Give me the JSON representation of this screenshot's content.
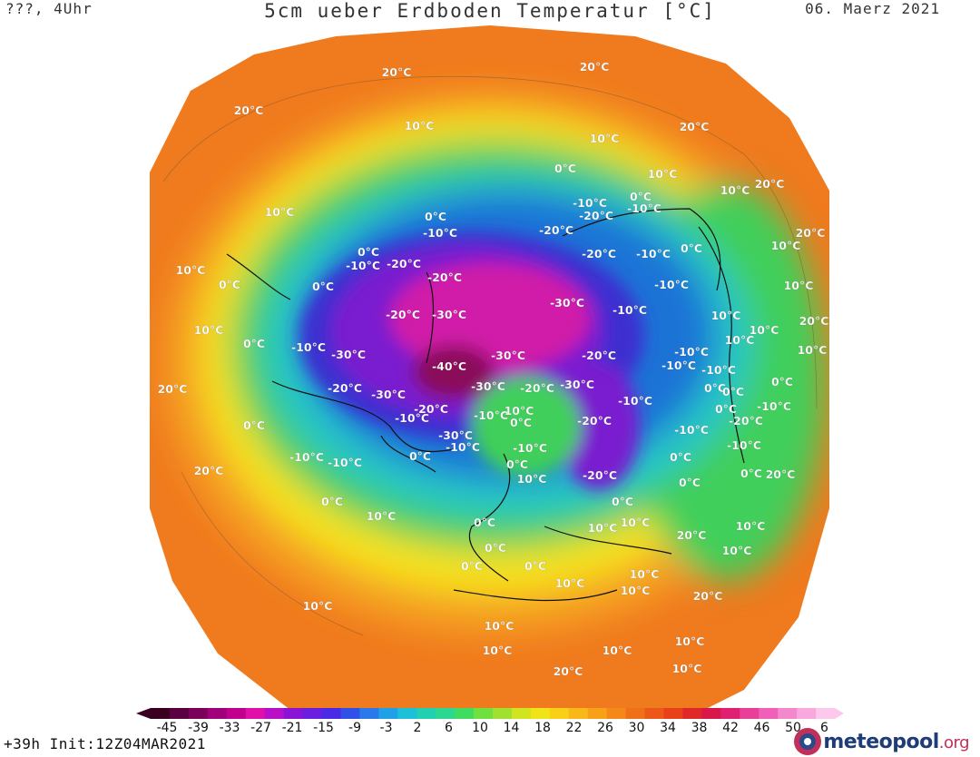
{
  "header": {
    "left": "???, 4Uhr",
    "title": "5cm ueber Erdboden Temperatur [°C]",
    "date": "06. Maerz 2021"
  },
  "footer": {
    "run_info": "+39h Init:12Z04MAR2021",
    "logo_main": "meteopool",
    "logo_tld": ".org"
  },
  "colors": {
    "warm_outer": "#f07a1e",
    "orange": "#f5a020",
    "yellow": "#f6e21a",
    "green": "#3fcf5a",
    "cyan": "#25c7c7",
    "blue": "#1a73d6",
    "deep_blue": "#3d2fd0",
    "violet": "#7a1ecf",
    "magenta": "#d01ea8",
    "dark_magenta": "#8a0f5a"
  },
  "legend": {
    "ticks": [
      "-45",
      "-39",
      "-33",
      "-27",
      "-21",
      "-15",
      "-9",
      "-3",
      "2",
      "6",
      "10",
      "14",
      "18",
      "22",
      "26",
      "30",
      "34",
      "38",
      "42",
      "46",
      "50",
      "6"
    ],
    "colors": [
      "#3a0020",
      "#5a0040",
      "#7a005a",
      "#a0007a",
      "#c2008e",
      "#e010a8",
      "#b810c8",
      "#8a14d6",
      "#6a1ee0",
      "#4a2ae6",
      "#3050e8",
      "#2a78ea",
      "#20a0e6",
      "#1cc0d8",
      "#20d0b0",
      "#2cd890",
      "#40dc60",
      "#70e040",
      "#a0e030",
      "#d0e420",
      "#f0e418",
      "#f8d018",
      "#f8b818",
      "#f8a018",
      "#f48818",
      "#f07018",
      "#ec5818",
      "#e84018",
      "#e02828",
      "#d81848",
      "#e02070",
      "#e84098",
      "#f060b8",
      "#f488cc",
      "#f8a8dc",
      "#fcc8ec"
    ]
  },
  "labels": [
    {
      "t": "20°C"
    },
    {
      "t": "20°C"
    },
    {
      "t": "20°C"
    },
    {
      "t": "10°C"
    },
    {
      "t": "10°C"
    },
    {
      "t": "20°C"
    },
    {
      "t": "0°C"
    },
    {
      "t": "10°C"
    },
    {
      "t": "10°C"
    },
    {
      "t": "20°C"
    },
    {
      "t": "-10°C"
    },
    {
      "t": "-20°C"
    },
    {
      "t": "-10°C"
    },
    {
      "t": "0°C"
    },
    {
      "t": "-10°C"
    },
    {
      "t": "-20°C"
    },
    {
      "t": "0°C"
    },
    {
      "t": "10°C"
    },
    {
      "t": "10°C"
    },
    {
      "t": "0°C"
    },
    {
      "t": "-10°C"
    },
    {
      "t": "-20°C"
    },
    {
      "t": "-20°C"
    },
    {
      "t": "-10°C"
    },
    {
      "t": "0°C"
    },
    {
      "t": "20°C"
    },
    {
      "t": "10°C"
    },
    {
      "t": "0°C"
    },
    {
      "t": "0°C"
    },
    {
      "t": "-20°C"
    },
    {
      "t": "-10°C"
    },
    {
      "t": "10°C"
    },
    {
      "t": "-30°C"
    },
    {
      "t": "-20°C"
    },
    {
      "t": "-30°C"
    },
    {
      "t": "-10°C"
    },
    {
      "t": "10°C"
    },
    {
      "t": "20°C"
    },
    {
      "t": "10°C"
    },
    {
      "t": "0°C"
    },
    {
      "t": "-10°C"
    },
    {
      "t": "-30°C"
    },
    {
      "t": "-30°C"
    },
    {
      "t": "-20°C"
    },
    {
      "t": "-10°C"
    },
    {
      "t": "10°C"
    },
    {
      "t": "10°C"
    },
    {
      "t": "20°C"
    },
    {
      "t": "-40°C"
    },
    {
      "t": "-10°C"
    },
    {
      "t": "-10°C"
    },
    {
      "t": "10°C"
    },
    {
      "t": "-20°C"
    },
    {
      "t": "-30°C"
    },
    {
      "t": "-30°C"
    },
    {
      "t": "-20°C"
    },
    {
      "t": "-30°C"
    },
    {
      "t": "-10°C"
    },
    {
      "t": "0°C"
    },
    {
      "t": "0°C"
    },
    {
      "t": "-10°C"
    },
    {
      "t": "-20°C"
    },
    {
      "t": "-10°C"
    },
    {
      "t": "-20°C"
    },
    {
      "t": "0°C"
    },
    {
      "t": "10°C"
    },
    {
      "t": "0°C"
    },
    {
      "t": "-10°C"
    },
    {
      "t": "0°C"
    },
    {
      "t": "-20°C"
    },
    {
      "t": "-30°C"
    },
    {
      "t": "-10°C"
    },
    {
      "t": "-10°C"
    },
    {
      "t": "-10°C"
    },
    {
      "t": "0°C"
    },
    {
      "t": "10°C"
    },
    {
      "t": "-10°C"
    },
    {
      "t": "-20°C"
    },
    {
      "t": "0°C"
    },
    {
      "t": "0°C"
    },
    {
      "t": "20°C"
    },
    {
      "t": "0°C"
    },
    {
      "t": "0°C"
    },
    {
      "t": "-10°C"
    },
    {
      "t": "-10°C"
    },
    {
      "t": "0°C"
    },
    {
      "t": "20°C"
    },
    {
      "t": "0°C"
    },
    {
      "t": "10°C"
    },
    {
      "t": "0°C"
    },
    {
      "t": "0°C"
    },
    {
      "t": "10°C"
    },
    {
      "t": "10°C"
    },
    {
      "t": "0°C"
    },
    {
      "t": "10°C"
    },
    {
      "t": "10°C"
    },
    {
      "t": "0°C"
    },
    {
      "t": "20°C"
    },
    {
      "t": "0°C"
    },
    {
      "t": "10°C"
    },
    {
      "t": "10°C"
    },
    {
      "t": "10°C"
    },
    {
      "t": "10°C"
    },
    {
      "t": "20°C"
    },
    {
      "t": "10°C"
    },
    {
      "t": "10°C"
    },
    {
      "t": "10°C"
    },
    {
      "t": "10°C"
    },
    {
      "t": "10°C"
    },
    {
      "t": "20°C"
    }
  ]
}
